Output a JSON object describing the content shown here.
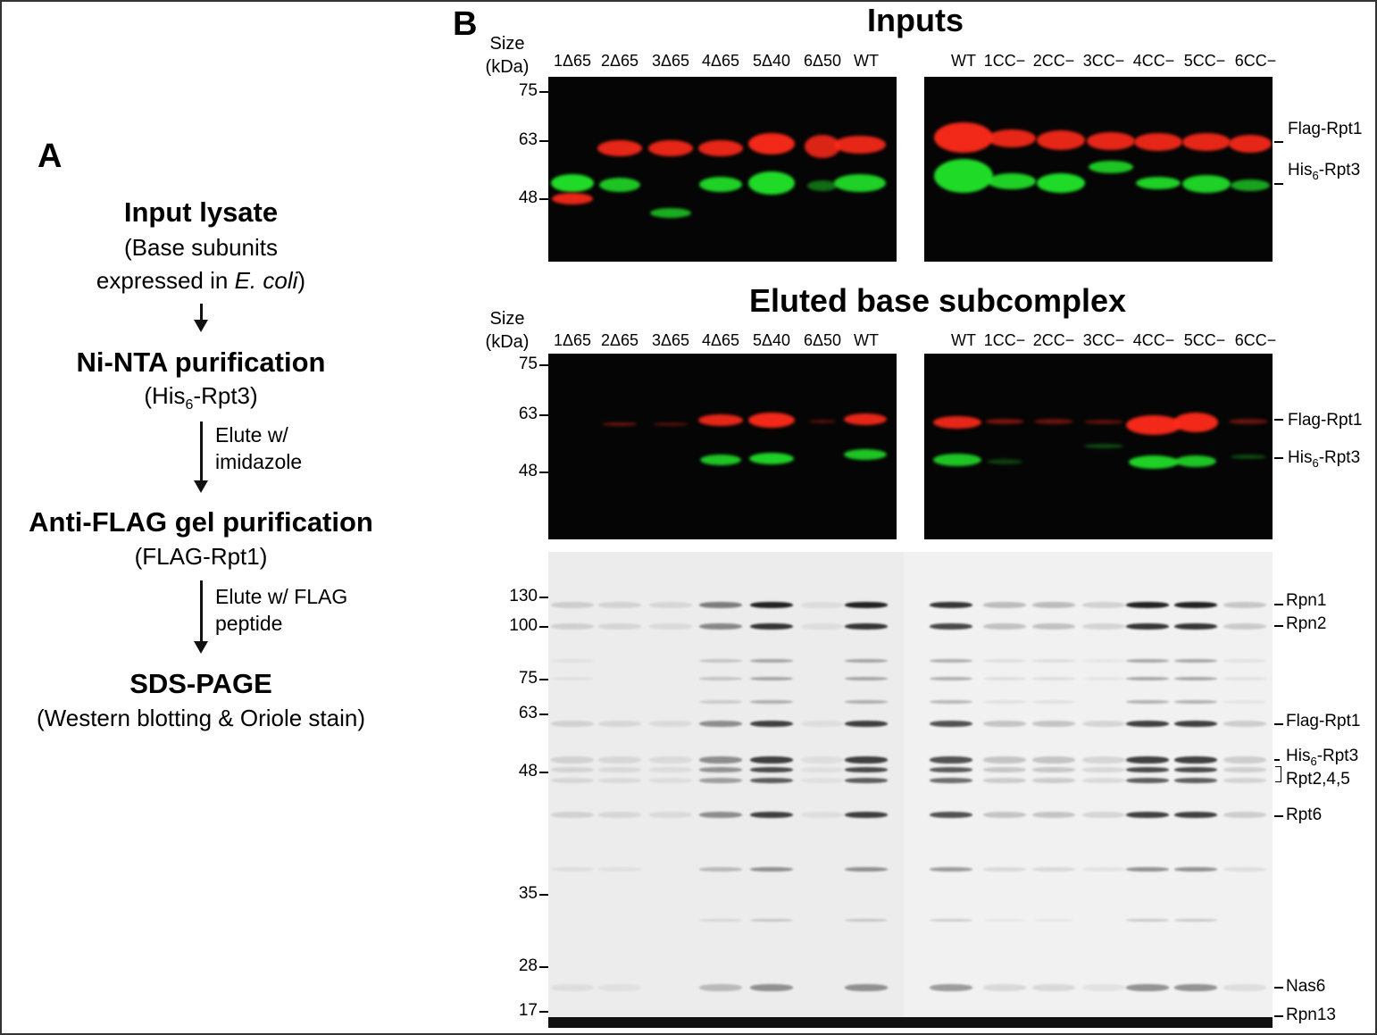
{
  "panel_a": {
    "letter": "A",
    "step1_title": "Input lysate",
    "step1_sub_line1": "(Base subunits",
    "step1_sub_line2_pre": "expressed in ",
    "step1_sub_line2_italic": "E. coli",
    "step1_sub_line2_post": ")",
    "step2_title": "Ni-NTA purification",
    "step2_sub_pre": "(His",
    "step2_sub_subscript": "6",
    "step2_sub_post": "-Rpt3)",
    "arrow2_line1": "Elute w/",
    "arrow2_line2": "imidazole",
    "step3_title": "Anti-FLAG gel purification",
    "step3_sub": "(FLAG-Rpt1)",
    "arrow3_line1": "Elute w/ FLAG",
    "arrow3_line2": "peptide",
    "step4_title": "SDS-PAGE",
    "step4_sub": "(Western blotting & Oriole stain)"
  },
  "panel_b": {
    "letter": "B",
    "size_label_line1": "Size",
    "size_label_line2": "(kDa)",
    "inputs_title": "Inputs",
    "eluted_title": "Eluted base subcomplex",
    "lanes_left": [
      "1Δ65",
      "2Δ65",
      "3Δ65",
      "4Δ65",
      "5Δ40",
      "6Δ50",
      "WT"
    ],
    "lanes_right": [
      "WT",
      "1CC−",
      "2CC−",
      "3CC−",
      "4CC−",
      "5CC−",
      "6CC−"
    ],
    "western_markers": [
      "75",
      "63",
      "48"
    ],
    "gel_markers": [
      "130",
      "100",
      "75",
      "63",
      "48",
      "35",
      "28",
      "17"
    ],
    "western_labels": {
      "flag_rpt1": "Flag-Rpt1",
      "his_pre": "His",
      "his_sub": "6",
      "his_post": "-Rpt3"
    },
    "gel_labels": {
      "rpn1": "Rpn1",
      "rpn2": "Rpn2",
      "flag_rpt1": "Flag-Rpt1",
      "his_pre": "His",
      "his_sub": "6",
      "his_post": "-Rpt3",
      "rpt245": "Rpt2,4,5",
      "rpt6": "Rpt6",
      "nas6": "Nas6",
      "rpn13": "Rpn13"
    },
    "colors": {
      "red_band": "#ff2a1a",
      "green_band": "#22e62a",
      "blot_background": "#050505",
      "gel_background": "#ececec",
      "gel_band": "#222222"
    }
  }
}
